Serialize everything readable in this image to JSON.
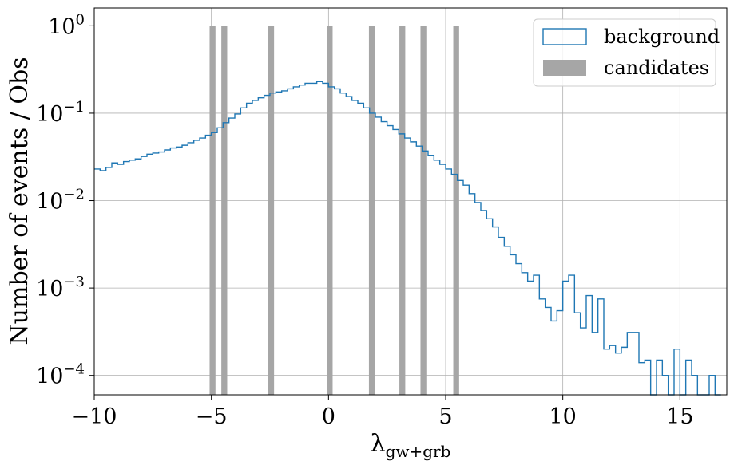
{
  "chart_data": {
    "type": "histogram",
    "x_scale": "linear",
    "y_scale": "log",
    "xlim": [
      -10,
      17
    ],
    "ylim": [
      6e-05,
      1.6
    ],
    "grid": true,
    "legend_position": "top-right",
    "xlabel": "λ",
    "xlabel_subscript": "gw+grb",
    "ylabel": "Number of events / Obs",
    "x_ticks": [
      {
        "value": -10,
        "label": "−10"
      },
      {
        "value": -5,
        "label": "−5"
      },
      {
        "value": 0,
        "label": "0"
      },
      {
        "value": 5,
        "label": "5"
      },
      {
        "value": 10,
        "label": "10"
      },
      {
        "value": 15,
        "label": "15"
      }
    ],
    "y_ticks": [
      {
        "value": 1,
        "base": "10",
        "exp": "0"
      },
      {
        "value": 0.1,
        "base": "10",
        "exp": "−1"
      },
      {
        "value": 0.01,
        "base": "10",
        "exp": "−2"
      },
      {
        "value": 0.001,
        "base": "10",
        "exp": "−3"
      },
      {
        "value": 0.0001,
        "base": "10",
        "exp": "−4"
      }
    ],
    "series": [
      {
        "name": "background",
        "kind": "step",
        "color": "#1f77b4",
        "bin_start": -10,
        "bin_width": 0.25,
        "values": [
          0.023,
          0.022,
          0.024,
          0.027,
          0.026,
          0.028,
          0.029,
          0.03,
          0.032,
          0.034,
          0.035,
          0.036,
          0.038,
          0.04,
          0.041,
          0.043,
          0.046,
          0.049,
          0.052,
          0.056,
          0.06,
          0.068,
          0.078,
          0.088,
          0.098,
          0.115,
          0.13,
          0.14,
          0.15,
          0.16,
          0.17,
          0.175,
          0.18,
          0.19,
          0.2,
          0.21,
          0.22,
          0.22,
          0.23,
          0.22,
          0.2,
          0.19,
          0.17,
          0.155,
          0.14,
          0.13,
          0.115,
          0.1,
          0.09,
          0.08,
          0.072,
          0.065,
          0.058,
          0.052,
          0.047,
          0.042,
          0.037,
          0.033,
          0.029,
          0.026,
          0.023,
          0.02,
          0.017,
          0.015,
          0.012,
          0.0095,
          0.0077,
          0.0062,
          0.005,
          0.0038,
          0.003,
          0.0024,
          0.0019,
          0.0015,
          0.0012,
          0.0014,
          0.00075,
          0.0006,
          0.00042,
          0.00055,
          0.0012,
          0.0014,
          0.00052,
          0.00035,
          0.00082,
          0.00031,
          0.00075,
          0.0002,
          0.00022,
          0.00018,
          0.00021,
          0.00031,
          0.00031,
          0.00014,
          0.00015,
          1e-05,
          0.00015,
          0.0001,
          1e-05,
          0.0002,
          1e-05,
          0.00015,
          0.0001,
          1e-05,
          1e-05,
          0.0001,
          1e-05
        ]
      },
      {
        "name": "candidates",
        "kind": "bar",
        "color": "#a6a6a6",
        "bin_width": 0.25,
        "x": [
          -4.95,
          -4.45,
          -2.45,
          0.05,
          1.85,
          3.15,
          4.05,
          5.45
        ],
        "values": [
          1,
          1,
          1,
          1,
          1,
          1,
          1,
          1
        ]
      }
    ]
  }
}
